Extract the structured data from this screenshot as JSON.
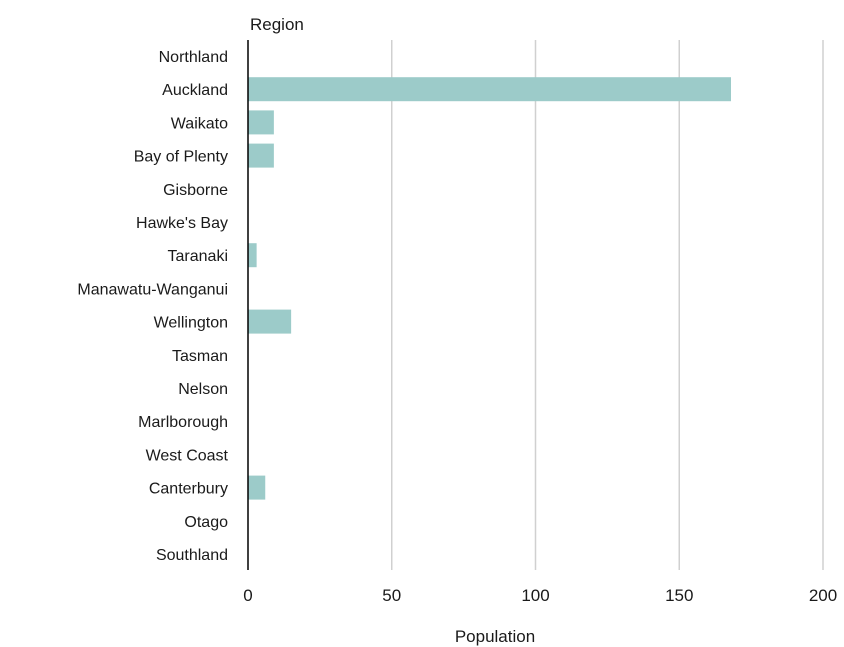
{
  "chart_data": {
    "type": "bar",
    "orientation": "horizontal",
    "title": "",
    "ylabel": "Region",
    "xlabel": "Population",
    "xlim": [
      0,
      200
    ],
    "xticks": [
      0,
      50,
      100,
      150,
      200
    ],
    "grid": true,
    "bar_color": "#9ccbc9",
    "categories": [
      "Northland",
      "Auckland",
      "Waikato",
      "Bay of Plenty",
      "Gisborne",
      "Hawke's Bay",
      "Taranaki",
      "Manawatu-Wanganui",
      "Wellington",
      "Tasman",
      "Nelson",
      "Marlborough",
      "West Coast",
      "Canterbury",
      "Otago",
      "Southland"
    ],
    "values": [
      0,
      168,
      9,
      9,
      0,
      0,
      3,
      0,
      15,
      0,
      0,
      0,
      0,
      6,
      0,
      0
    ]
  }
}
